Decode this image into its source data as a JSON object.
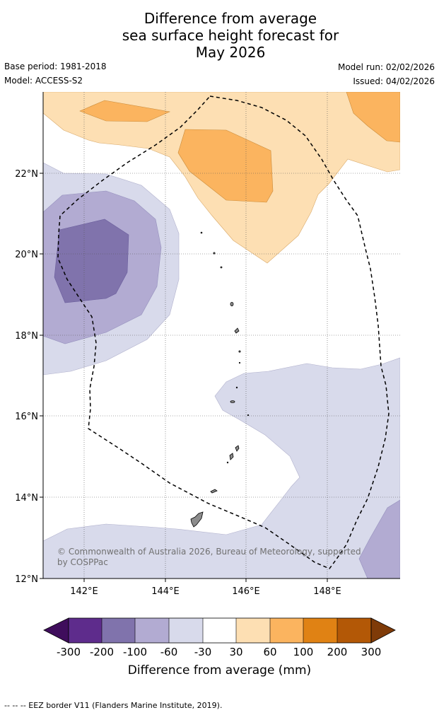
{
  "title": {
    "line1": "Difference from average",
    "line2": "sea surface height forecast for",
    "line3": "May 2026"
  },
  "meta": {
    "base_period": "Base period: 1981-2018",
    "model": "Model: ACCESS-S2",
    "model_run": "Model run: 02/02/2026",
    "issued": "Issued: 04/02/2026"
  },
  "map": {
    "lat_ticks": [
      "22°N",
      "20°N",
      "18°N",
      "16°N",
      "14°N",
      "12°N"
    ],
    "lon_ticks": [
      "142°E",
      "144°E",
      "146°E",
      "148°E"
    ],
    "copyright_line1": "© Commonwealth of Australia 2026, Bureau of Meteorology, supported",
    "copyright_line2": "by COSPPac",
    "colors": {
      "neg_300": "#3f0d5c",
      "neg_200": "#5e2c8c",
      "neg_100": "#8073ac",
      "neg_60": "#b2abd2",
      "neg_30": "#d8daeb",
      "neutral": "#ffffff",
      "pos_30": "#fddfb3",
      "pos_60": "#fbb45f",
      "pos_100": "#e08214",
      "pos_200": "#b35806",
      "pos_300": "#7f3b08"
    }
  },
  "colorbar": {
    "ticks": [
      "-300",
      "-200",
      "-100",
      "-60",
      "-30",
      "30",
      "60",
      "100",
      "200",
      "300"
    ],
    "label": "Difference from average (mm)"
  },
  "footnote": "--  --  -- EEZ border V11 (Flanders Marine Institute, 2019)."
}
